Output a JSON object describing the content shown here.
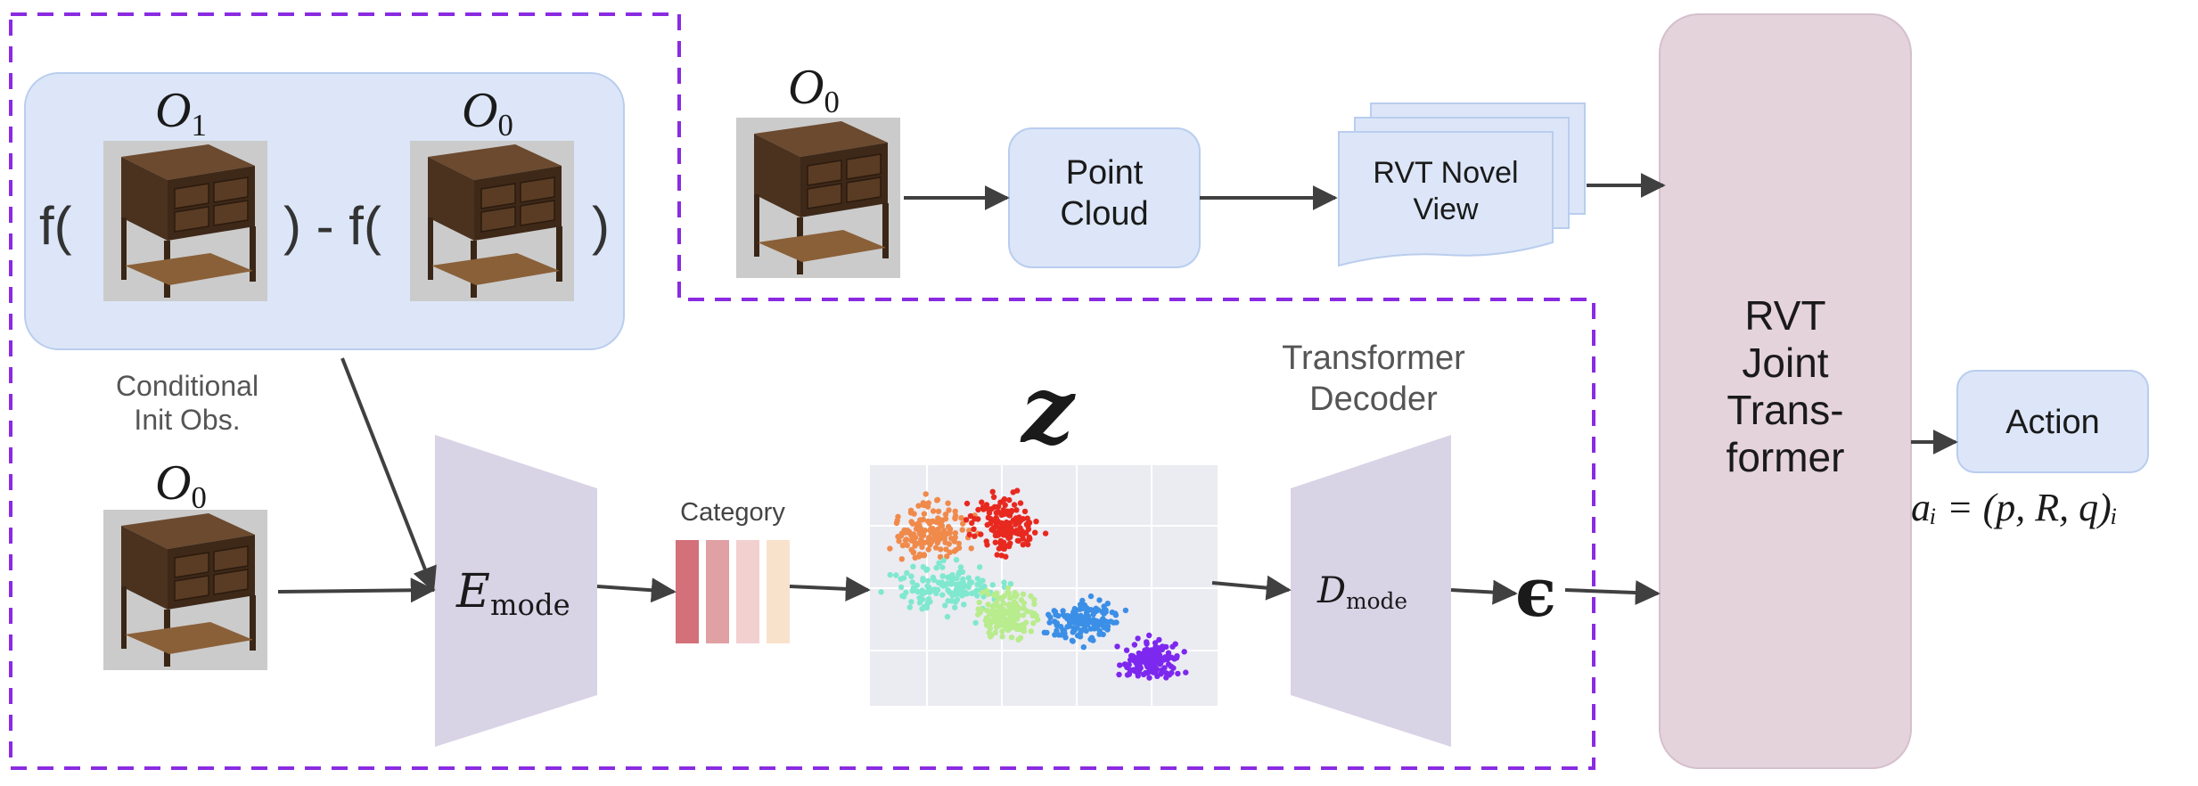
{
  "condition_box": {
    "f_open": "f(",
    "minus": ") - f(",
    "f_close": ")",
    "obs_left": {
      "base": "O",
      "sub": "1"
    },
    "obs_right": {
      "base": "O",
      "sub": "0"
    },
    "caption": "Conditional\nInit Obs."
  },
  "top_path": {
    "obs": {
      "base": "O",
      "sub": "0"
    },
    "point_cloud": "Point\nCloud",
    "novel_view": "RVT Novel\nView"
  },
  "bottom_path": {
    "obs": {
      "base": "O",
      "sub": "0"
    },
    "encoder": {
      "base": "E",
      "sub": "mode"
    },
    "category": "Category",
    "latent_symbol": "z",
    "decoder_title": "Transformer\nDecoder",
    "decoder": {
      "base": "D",
      "sub": "mode"
    },
    "epsilon": "ϵ"
  },
  "rvt": "RVT\nJoint\nTrans-\nformer",
  "action": "Action",
  "action_formula": "aᵢ = (p, R, q)ᵢ",
  "colors": {
    "dashed_border": "#8a2be2",
    "box_fill": "#dce6f8",
    "box_stroke": "#b9cdee",
    "rvt_fill": "#e5d3dc",
    "trapezoid_fill": "#d9d3e6",
    "arrow": "#404040",
    "category_bars": [
      "#d4707a",
      "#e0a1a4",
      "#f2d0d0",
      "#f9e2cc"
    ],
    "clusters": [
      "#f08a4b",
      "#e8291f",
      "#7fe8cf",
      "#b8ec8c",
      "#3b8fe6",
      "#7d28ee"
    ]
  },
  "icons": [
    "sideboard-image"
  ]
}
